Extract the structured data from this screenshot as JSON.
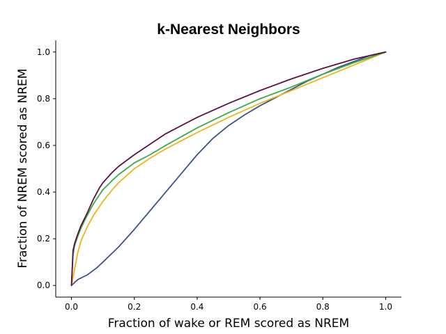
{
  "chart_data": {
    "type": "line",
    "title": "k-Nearest Neighbors",
    "xlabel": "Fraction of wake or REM scored as NREM",
    "ylabel": "Fraction of NREM scored as NREM",
    "xlim": [
      -0.05,
      1.05
    ],
    "ylim": [
      -0.05,
      1.05
    ],
    "xticks": [
      "0.0",
      "0.2",
      "0.4",
      "0.6",
      "0.8",
      "1.0"
    ],
    "yticks": [
      "0.0",
      "0.2",
      "0.4",
      "0.6",
      "0.8",
      "1.0"
    ],
    "grid": false,
    "legend": "none",
    "series": [
      {
        "color": "#3b528b",
        "x": [
          0,
          0.02,
          0.05,
          0.08,
          0.1,
          0.15,
          0.2,
          0.25,
          0.3,
          0.35,
          0.4,
          0.45,
          0.5,
          0.55,
          0.6,
          0.65,
          0.7,
          0.75,
          0.8,
          0.85,
          0.9,
          0.95,
          1.0
        ],
        "y": [
          0,
          0.025,
          0.045,
          0.075,
          0.1,
          0.165,
          0.24,
          0.32,
          0.4,
          0.48,
          0.56,
          0.63,
          0.685,
          0.73,
          0.77,
          0.805,
          0.84,
          0.875,
          0.905,
          0.935,
          0.96,
          0.985,
          1.0
        ]
      },
      {
        "color": "#f0b21a",
        "x": [
          0,
          0.01,
          0.02,
          0.03,
          0.05,
          0.07,
          0.1,
          0.13,
          0.15,
          0.2,
          0.25,
          0.3,
          0.4,
          0.5,
          0.6,
          0.7,
          0.8,
          0.9,
          1.0
        ],
        "y": [
          0,
          0.07,
          0.14,
          0.19,
          0.25,
          0.3,
          0.36,
          0.41,
          0.44,
          0.5,
          0.545,
          0.585,
          0.655,
          0.72,
          0.78,
          0.835,
          0.89,
          0.945,
          1.0
        ]
      },
      {
        "color": "#3aaa48",
        "x": [
          0,
          0.005,
          0.01,
          0.02,
          0.03,
          0.05,
          0.07,
          0.09,
          0.1,
          0.13,
          0.15,
          0.2,
          0.25,
          0.3,
          0.4,
          0.5,
          0.6,
          0.7,
          0.8,
          0.9,
          1.0
        ],
        "y": [
          0,
          0.13,
          0.17,
          0.21,
          0.245,
          0.3,
          0.35,
          0.39,
          0.41,
          0.45,
          0.475,
          0.525,
          0.56,
          0.6,
          0.675,
          0.74,
          0.8,
          0.85,
          0.905,
          0.955,
          1.0
        ]
      },
      {
        "color": "#5c0f47",
        "x": [
          0,
          0.005,
          0.01,
          0.02,
          0.03,
          0.05,
          0.07,
          0.09,
          0.1,
          0.13,
          0.15,
          0.2,
          0.25,
          0.3,
          0.4,
          0.5,
          0.6,
          0.7,
          0.8,
          0.9,
          1.0
        ],
        "y": [
          0,
          0.15,
          0.18,
          0.22,
          0.255,
          0.31,
          0.37,
          0.42,
          0.44,
          0.485,
          0.51,
          0.56,
          0.605,
          0.65,
          0.72,
          0.78,
          0.835,
          0.885,
          0.93,
          0.97,
          1.0
        ]
      }
    ]
  }
}
